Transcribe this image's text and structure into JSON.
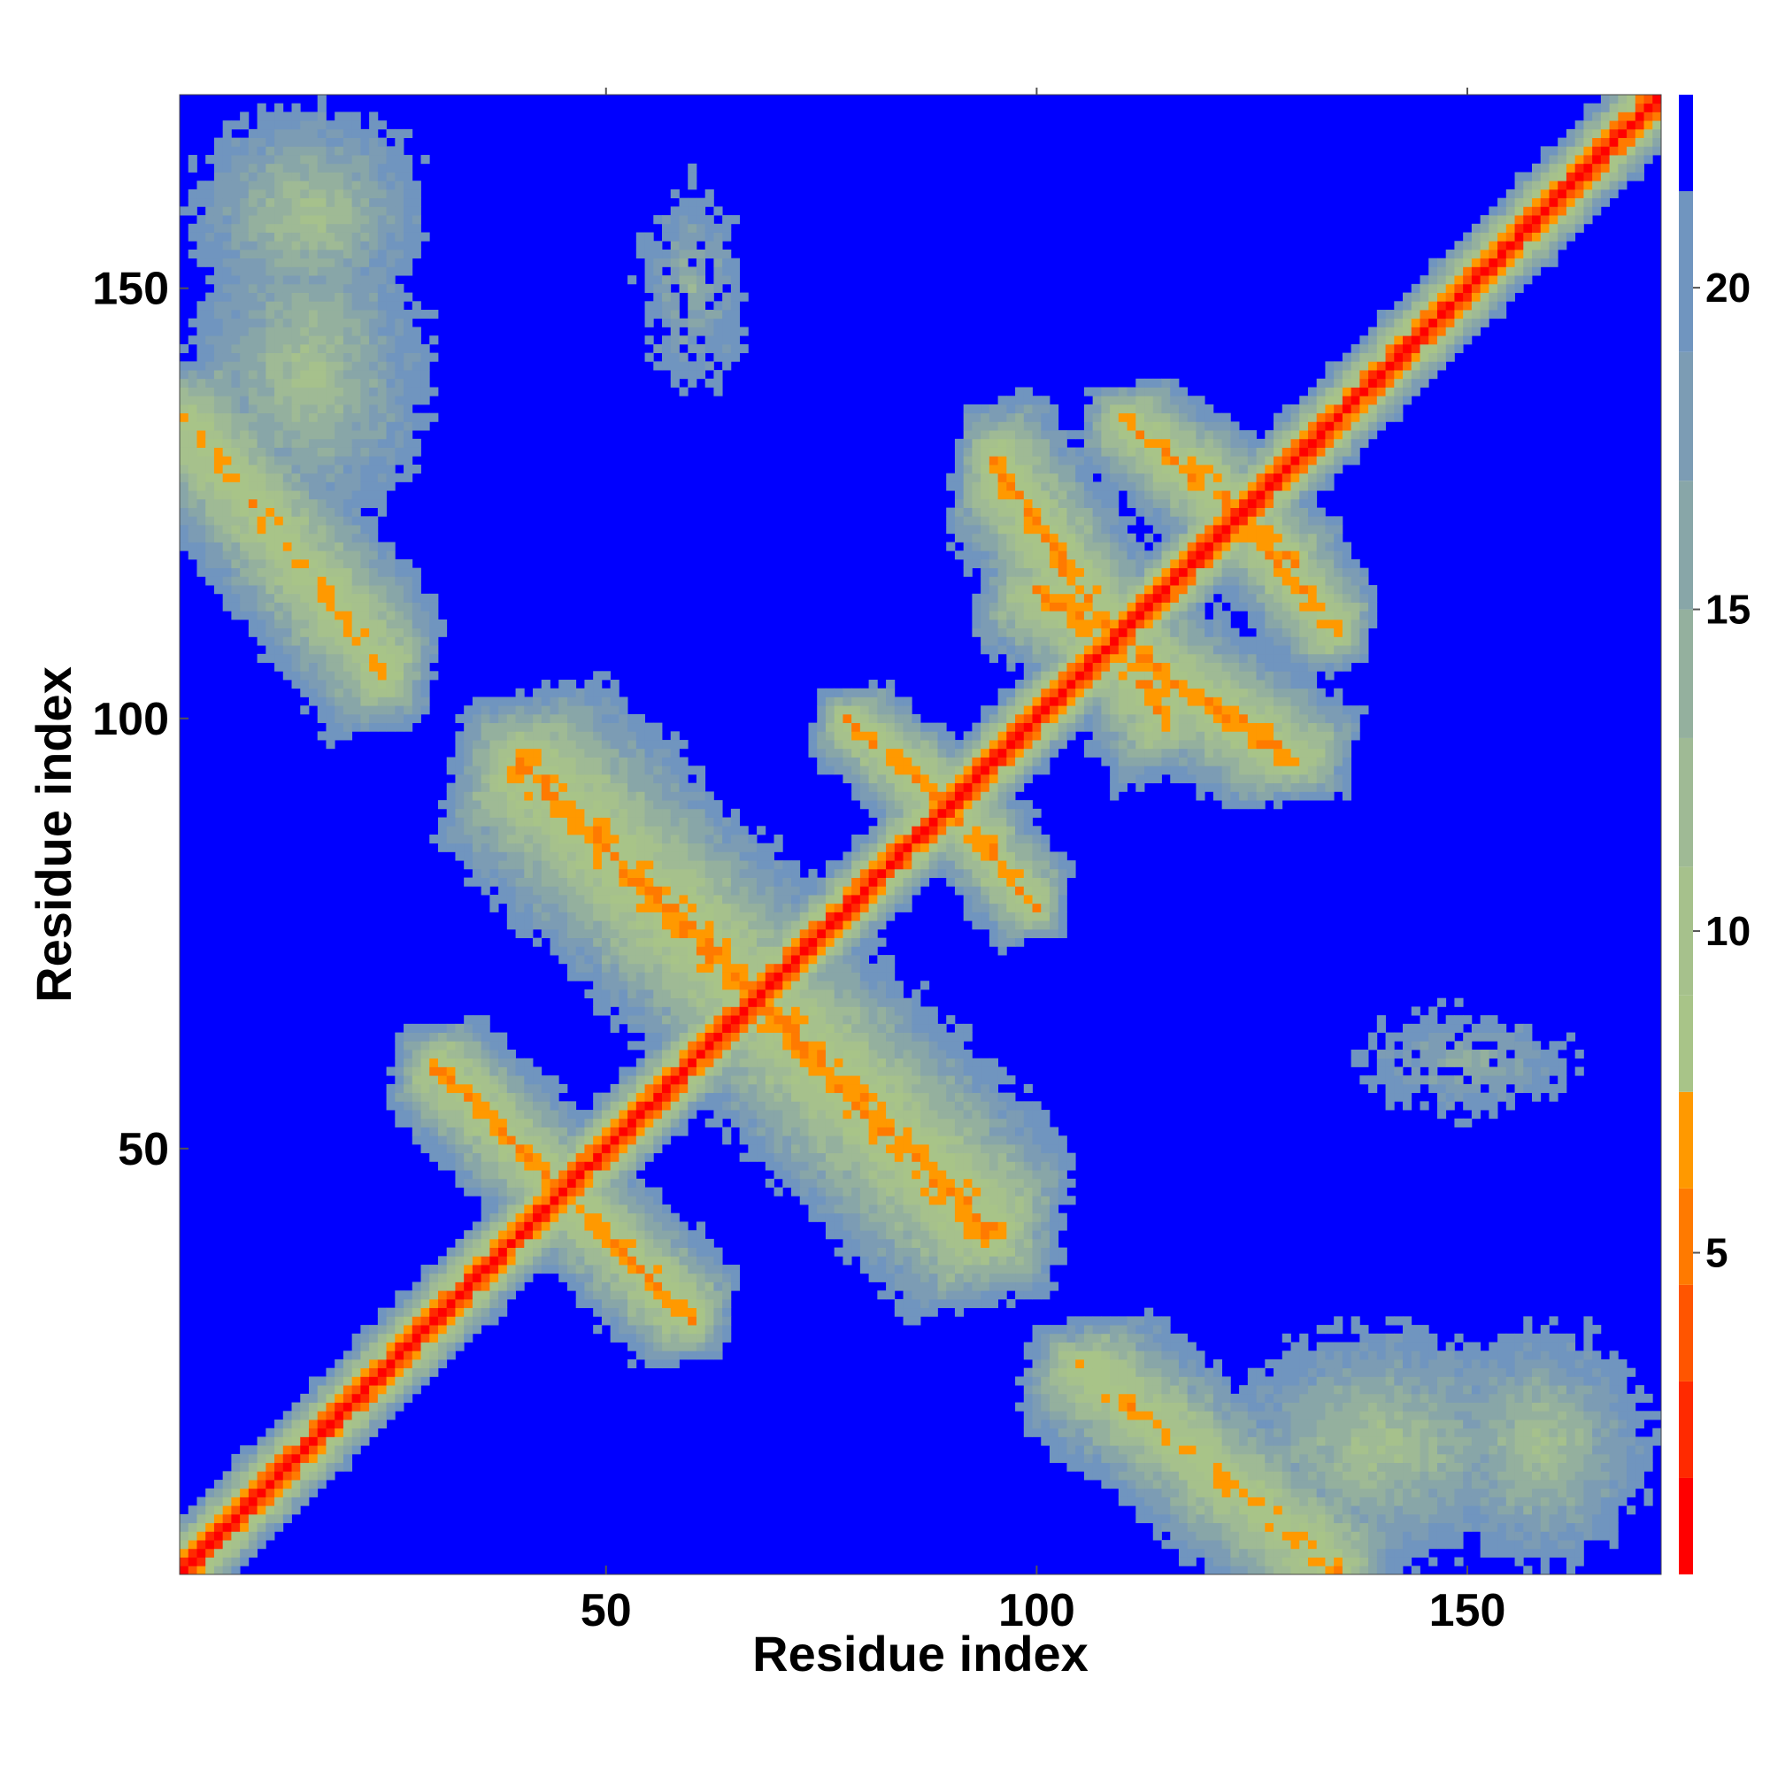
{
  "chart_data": {
    "type": "heatmap",
    "description_kind": "residue contact distance map",
    "xlabel": "Residue index",
    "ylabel": "Residue index",
    "xlim": [
      1,
      172
    ],
    "ylim": [
      1,
      172
    ],
    "x_ticks": [
      50,
      100,
      150
    ],
    "y_ticks": [
      50,
      100,
      150
    ],
    "colorbar": {
      "ticks": [
        5,
        10,
        15,
        20
      ],
      "range": [
        0,
        23
      ],
      "levels": [
        {
          "upper": 1.5,
          "color": "#ff0000"
        },
        {
          "upper": 3.0,
          "color": "#ff2a00"
        },
        {
          "upper": 4.5,
          "color": "#ff5500"
        },
        {
          "upper": 6.0,
          "color": "#ff7a00"
        },
        {
          "upper": 7.5,
          "color": "#ff9900"
        },
        {
          "upper": 9.0,
          "color": "#a8c488"
        },
        {
          "upper": 11.0,
          "color": "#a6c18c"
        },
        {
          "upper": 13.0,
          "color": "#9fba95"
        },
        {
          "upper": 15.0,
          "color": "#94b09e"
        },
        {
          "upper": 17.0,
          "color": "#88a6a8"
        },
        {
          "upper": 19.0,
          "color": "#7c9cb4"
        },
        {
          "upper": 21.5,
          "color": "#7095bf"
        },
        {
          "upper": 23.0,
          "color": "#0000ff"
        }
      ],
      "background_color": "#0000ff"
    },
    "structure": {
      "diagonal": {
        "from": 1,
        "to": 172,
        "value": 0
      },
      "diagonal_band_width": 6,
      "off_diagonal_contacts": [
        {
          "i": [
            40,
            75
          ],
          "j": [
            60,
            95
          ],
          "kind": "antiparallel",
          "value": 6
        },
        {
          "i": [
            78,
            95
          ],
          "j": [
            85,
            100
          ],
          "kind": "antiparallel",
          "value": 6
        },
        {
          "i": [
            95,
            115
          ],
          "j": [
            100,
            130
          ],
          "kind": "antiparallel",
          "value": 6
        },
        {
          "i": [
            110,
            130
          ],
          "j": [
            118,
            135
          ],
          "kind": "antiparallel",
          "value": 6
        },
        {
          "i": [
            30,
            50
          ],
          "j": [
            40,
            60
          ],
          "kind": "antiparallel",
          "value": 6
        },
        {
          "i": [
            1,
            30
          ],
          "j": [
            120,
            160
          ],
          "kind": "cluster",
          "value": 10
        },
        {
          "i": [
            145,
            172
          ],
          "j": [
            1,
            30
          ],
          "kind": "cluster",
          "value": 10
        },
        {
          "i": [
            105,
            135
          ],
          "j": [
            1,
            25
          ],
          "kind": "antiparallel",
          "value": 7
        },
        {
          "i": [
            1,
            25
          ],
          "j": [
            105,
            135
          ],
          "kind": "antiparallel",
          "value": 7
        },
        {
          "i": [
            50,
            70
          ],
          "j": [
            130,
            170
          ],
          "kind": "sparse",
          "value": 14
        },
        {
          "i": [
            130,
            170
          ],
          "j": [
            50,
            70
          ],
          "kind": "sparse",
          "value": 14
        }
      ]
    }
  }
}
